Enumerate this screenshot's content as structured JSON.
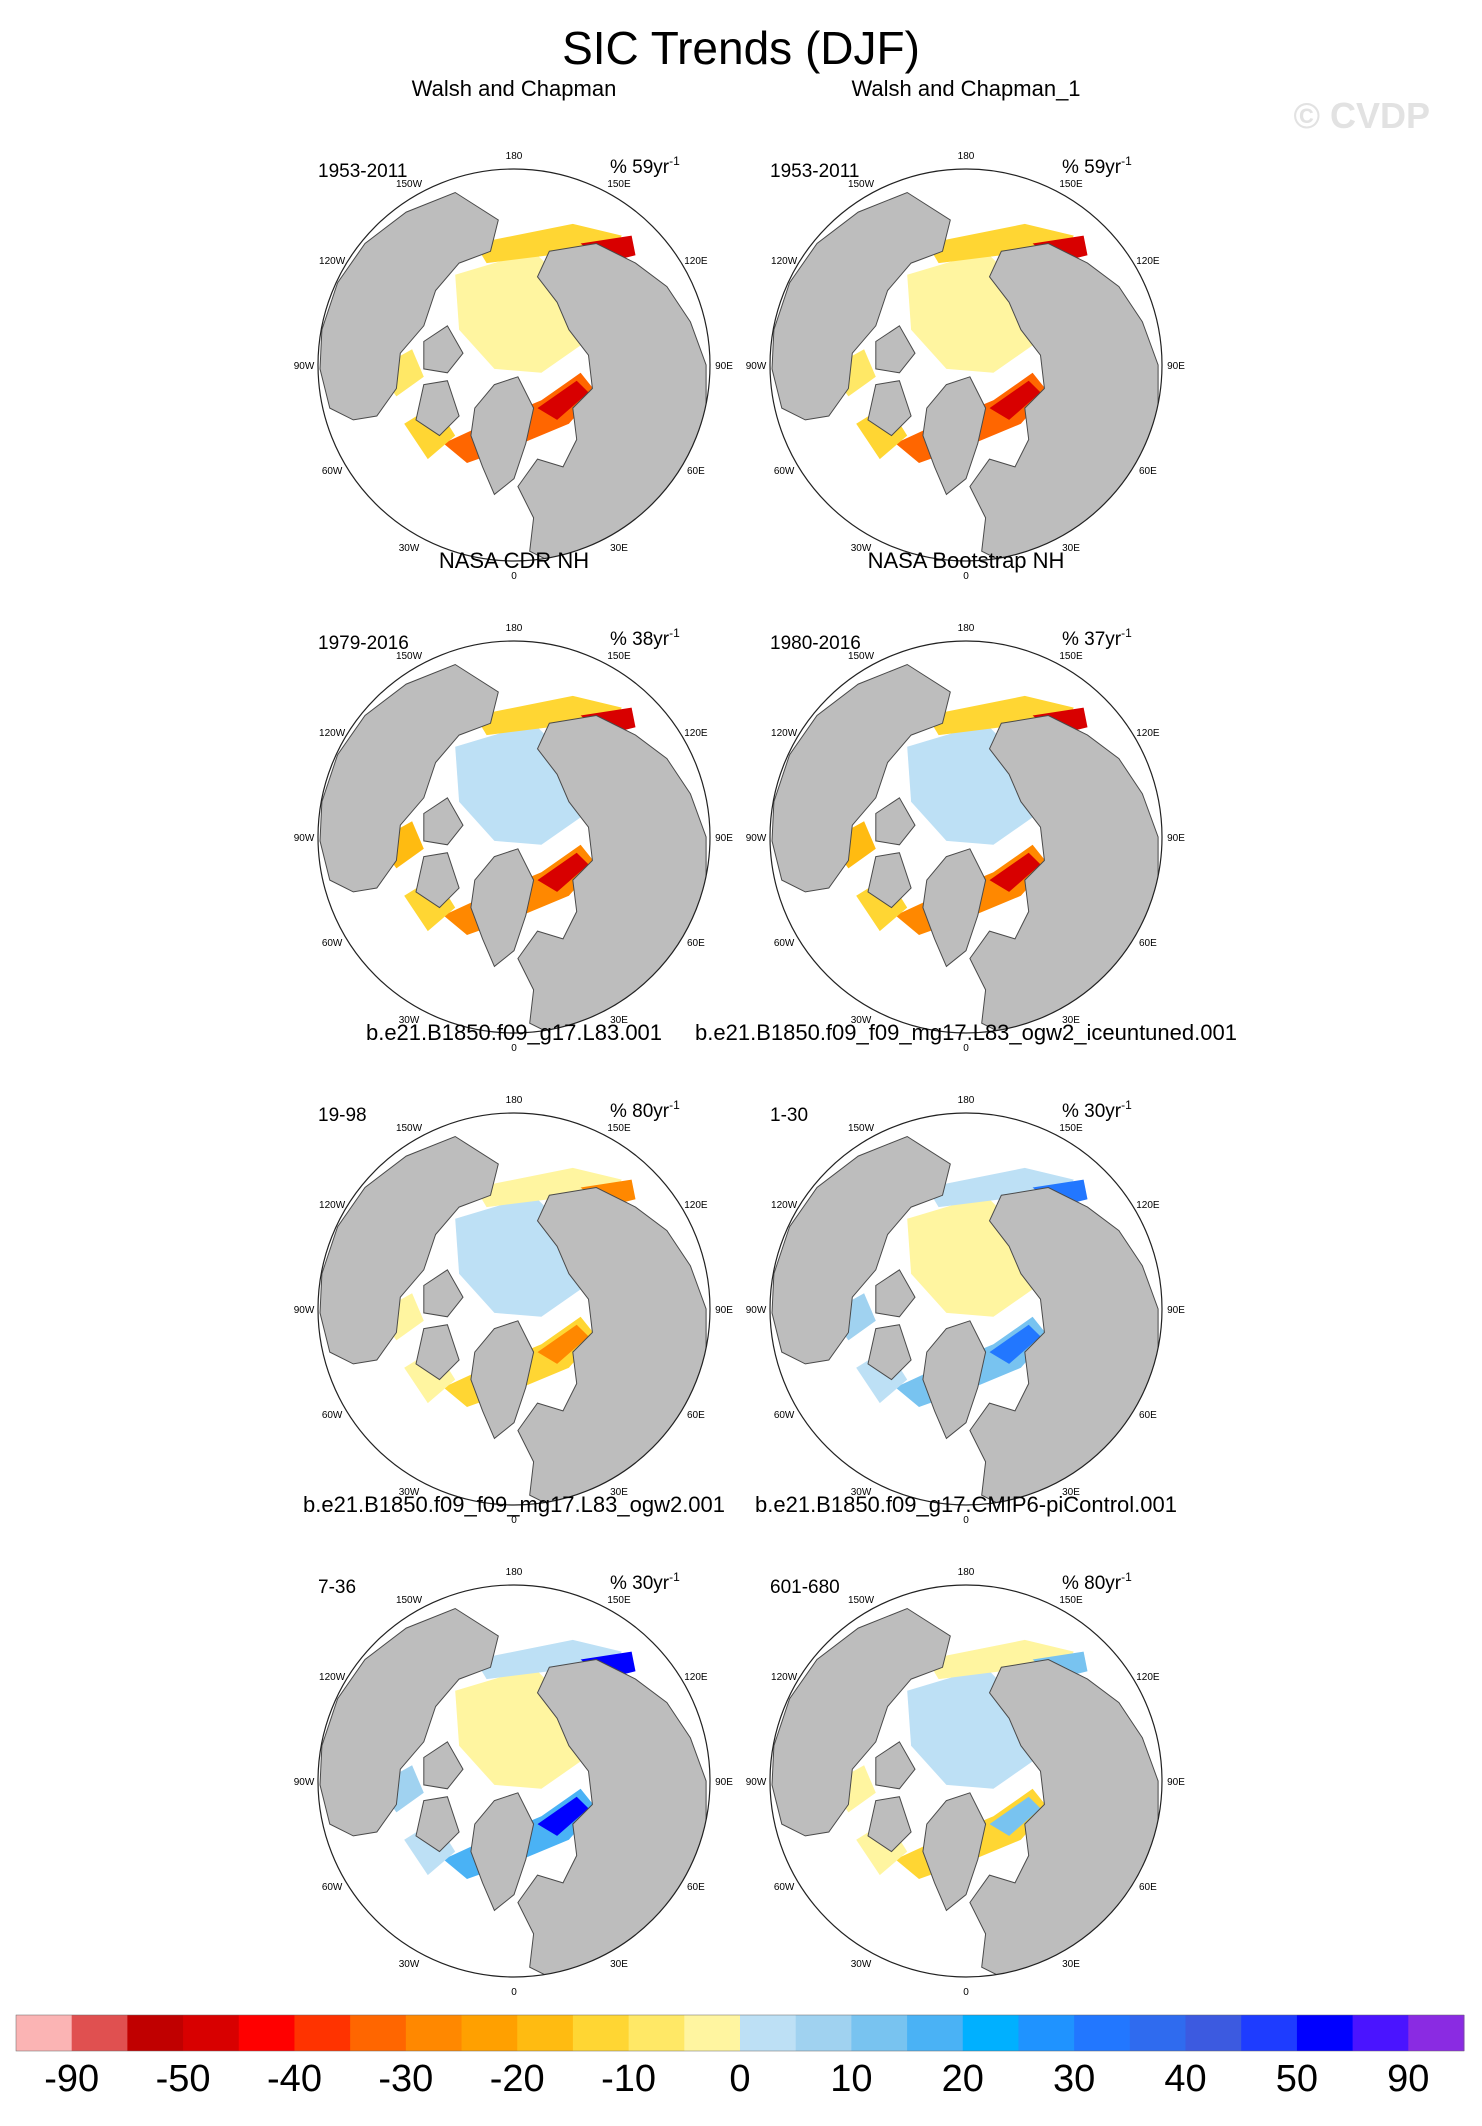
{
  "figure": {
    "title": "SIC Trends (DJF)",
    "watermark": "© CVDP"
  },
  "colors": {
    "land": "#bdbdbd",
    "coast": "#4a4a4a",
    "ocean": "#ffffff"
  },
  "chart_data": {
    "type": "heatmap",
    "projection": "north polar stereographic",
    "variable": "Sea ice concentration trend (DJF)",
    "longitude_labels": [
      "180",
      "150E",
      "120E",
      "90E",
      "60E",
      "30E",
      "0",
      "30W",
      "60W",
      "90W",
      "120W",
      "150W"
    ],
    "panels": [
      {
        "title": "Walsh and Chapman",
        "period": "1953-2011",
        "scale": "% 59yr",
        "scale_exp": "-1",
        "pattern": "decline_strong"
      },
      {
        "title": "Walsh and Chapman_1",
        "period": "1953-2011",
        "scale": "% 59yr",
        "scale_exp": "-1",
        "pattern": "decline_strong"
      },
      {
        "title": "NASA CDR NH",
        "period": "1979-2016",
        "scale": "% 38yr",
        "scale_exp": "-1",
        "pattern": "decline_moderate"
      },
      {
        "title": "NASA Bootstrap NH",
        "period": "1980-2016",
        "scale": "% 37yr",
        "scale_exp": "-1",
        "pattern": "decline_moderate"
      },
      {
        "title": "b.e21.B1850.f09_g17.L83.001",
        "period": "19-98",
        "scale": "% 80yr",
        "scale_exp": "-1",
        "pattern": "weak_warm"
      },
      {
        "title": "b.e21.B1850.f09_f09_mg17.L83_ogw2_iceuntuned.001",
        "period": "1-30",
        "scale": "% 30yr",
        "scale_exp": "-1",
        "pattern": "weak_cool"
      },
      {
        "title": "b.e21.B1850.f09_f09_mg17.L83_ogw2.001",
        "period": "7-36",
        "scale": "% 30yr",
        "scale_exp": "-1",
        "pattern": "mixed_cool"
      },
      {
        "title": "b.e21.B1850.f09_g17.CMIP6-piControl.001",
        "period": "601-680",
        "scale": "% 80yr",
        "scale_exp": "-1",
        "pattern": "mixed"
      }
    ],
    "colorbar": {
      "labels": [
        "-90",
        "-50",
        "-40",
        "-30",
        "-20",
        "-10",
        "0",
        "10",
        "20",
        "30",
        "40",
        "50",
        "90"
      ],
      "colors": [
        "#fbb4b4",
        "#e05050",
        "#c00000",
        "#d80000",
        "#ff0000",
        "#ff3300",
        "#ff6600",
        "#ff8800",
        "#ffa000",
        "#ffbb11",
        "#ffd633",
        "#ffe866",
        "#fff5a0",
        "#bde0f5",
        "#a0d2f0",
        "#78c3f0",
        "#4ab2f5",
        "#00b0ff",
        "#1f93ff",
        "#2277ff",
        "#2f6bef",
        "#3c5ae0",
        "#1e3cff",
        "#0000ff",
        "#4a14ff",
        "#8a2be2"
      ]
    }
  }
}
